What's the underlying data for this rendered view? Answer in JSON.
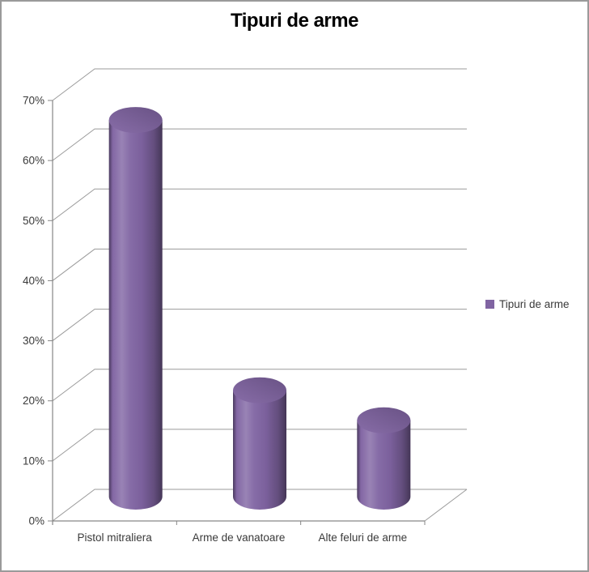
{
  "frame": {
    "background": "#ffffff",
    "border_color": "#9a9a9a"
  },
  "chart_data": {
    "type": "bar",
    "subtype": "3d-cylinder",
    "title": "Tipuri de arme",
    "categories": [
      "Pistol mitraliera",
      "Arme de vanatoare",
      "Alte feluri de arme"
    ],
    "series": [
      {
        "name": "Tipuri de arme",
        "values": [
          65,
          20,
          15
        ]
      }
    ],
    "values_unit": "%",
    "ylim": [
      0,
      70
    ],
    "ytick_step": 10,
    "ytick_labels": [
      "0%",
      "10%",
      "20%",
      "30%",
      "40%",
      "50%",
      "60%",
      "70%"
    ],
    "grid": true,
    "legend_position": "right",
    "legend": {
      "label": "Tipuri de arme",
      "swatch_color": "#8064a2"
    },
    "bar_color": "#8064a2",
    "text_color": "#3a3a3a",
    "grid_color": "#9b9b9b",
    "axis_color": "#868686"
  }
}
